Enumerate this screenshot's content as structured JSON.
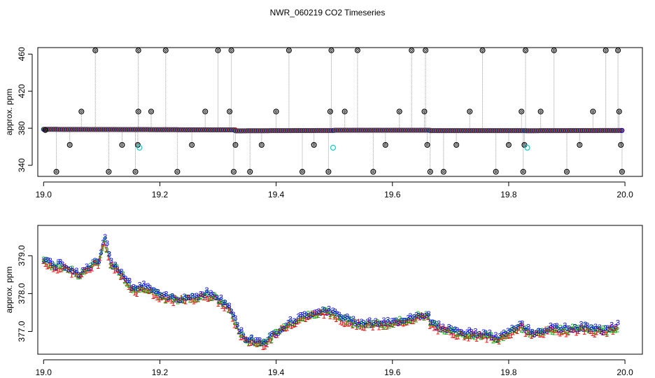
{
  "title": "NWR_060219  CO2 Timeseries",
  "colors": {
    "axis": "#000000",
    "series1": "#ff0000",
    "series2": "#00b000",
    "series3": "#0000ff",
    "flagged": "#000000",
    "cyan": "#00d0d0",
    "lines": "#999999"
  },
  "chart_data": [
    {
      "type": "scatter",
      "ylabel": "approx. ppm",
      "xlim": [
        18.99,
        20.03
      ],
      "ylim": [
        328,
        467
      ],
      "xticks": [
        19.0,
        19.2,
        19.4,
        19.6,
        19.8,
        20.0
      ],
      "xtick_labels": [
        "19.0",
        "19.2",
        "19.4",
        "19.6",
        "19.8",
        "20.0"
      ],
      "yticks": [
        340,
        380,
        420,
        460
      ],
      "ytick_labels": [
        "340",
        "380",
        "420",
        "460"
      ],
      "baseline_segments": [
        {
          "x": [
            19.0,
            19.33
          ],
          "y": [
            378.8,
            378.2
          ]
        },
        {
          "x": [
            19.33,
            19.5
          ],
          "y": [
            377.2,
            377.6
          ]
        },
        {
          "x": [
            19.5,
            19.665
          ],
          "y": [
            377.8,
            377.8
          ]
        },
        {
          "x": [
            19.665,
            19.83
          ],
          "y": [
            377.4,
            377.4
          ]
        },
        {
          "x": [
            19.83,
            19.995
          ],
          "y": [
            377.3,
            377.6
          ]
        }
      ],
      "flagged_points": [
        {
          "x": 19.003,
          "y": 378
        },
        {
          "x": 19.022,
          "y": 333
        },
        {
          "x": 19.045,
          "y": 362
        },
        {
          "x": 19.065,
          "y": 398
        },
        {
          "x": 19.089,
          "y": 464
        },
        {
          "x": 19.112,
          "y": 333
        },
        {
          "x": 19.135,
          "y": 362
        },
        {
          "x": 19.158,
          "y": 333
        },
        {
          "x": 19.162,
          "y": 362
        },
        {
          "x": 19.163,
          "y": 398
        },
        {
          "x": 19.163,
          "y": 464
        },
        {
          "x": 19.185,
          "y": 398
        },
        {
          "x": 19.21,
          "y": 464
        },
        {
          "x": 19.23,
          "y": 333
        },
        {
          "x": 19.255,
          "y": 362
        },
        {
          "x": 19.278,
          "y": 398
        },
        {
          "x": 19.3,
          "y": 464
        },
        {
          "x": 19.32,
          "y": 398
        },
        {
          "x": 19.323,
          "y": 464
        },
        {
          "x": 19.327,
          "y": 333
        },
        {
          "x": 19.33,
          "y": 362
        },
        {
          "x": 19.355,
          "y": 333
        },
        {
          "x": 19.375,
          "y": 362
        },
        {
          "x": 19.4,
          "y": 398
        },
        {
          "x": 19.422,
          "y": 464
        },
        {
          "x": 19.445,
          "y": 333
        },
        {
          "x": 19.465,
          "y": 362
        },
        {
          "x": 19.49,
          "y": 333
        },
        {
          "x": 19.493,
          "y": 398
        },
        {
          "x": 19.495,
          "y": 464
        },
        {
          "x": 19.518,
          "y": 398
        },
        {
          "x": 19.54,
          "y": 464
        },
        {
          "x": 19.567,
          "y": 333
        },
        {
          "x": 19.588,
          "y": 362
        },
        {
          "x": 19.612,
          "y": 398
        },
        {
          "x": 19.633,
          "y": 464
        },
        {
          "x": 19.655,
          "y": 398
        },
        {
          "x": 19.657,
          "y": 464
        },
        {
          "x": 19.66,
          "y": 362
        },
        {
          "x": 19.665,
          "y": 333
        },
        {
          "x": 19.688,
          "y": 333
        },
        {
          "x": 19.71,
          "y": 362
        },
        {
          "x": 19.733,
          "y": 398
        },
        {
          "x": 19.755,
          "y": 464
        },
        {
          "x": 19.778,
          "y": 333
        },
        {
          "x": 19.8,
          "y": 362
        },
        {
          "x": 19.822,
          "y": 398
        },
        {
          "x": 19.825,
          "y": 333
        },
        {
          "x": 19.827,
          "y": 362
        },
        {
          "x": 19.829,
          "y": 464
        },
        {
          "x": 19.855,
          "y": 398
        },
        {
          "x": 19.878,
          "y": 464
        },
        {
          "x": 19.9,
          "y": 333
        },
        {
          "x": 19.922,
          "y": 362
        },
        {
          "x": 19.945,
          "y": 398
        },
        {
          "x": 19.967,
          "y": 464
        },
        {
          "x": 19.988,
          "y": 464
        },
        {
          "x": 19.99,
          "y": 398
        },
        {
          "x": 19.993,
          "y": 362
        },
        {
          "x": 19.995,
          "y": 333
        }
      ],
      "cyan_points": [
        {
          "x": 19.165,
          "y": 359
        },
        {
          "x": 19.498,
          "y": 359
        },
        {
          "x": 19.832,
          "y": 359
        }
      ]
    },
    {
      "type": "scatter",
      "ylabel": "approx. ppm",
      "xlim": [
        18.99,
        20.03
      ],
      "ylim": [
        376.4,
        379.8
      ],
      "xticks": [
        19.0,
        19.2,
        19.4,
        19.6,
        19.8,
        20.0
      ],
      "xtick_labels": [
        "19.0",
        "19.2",
        "19.4",
        "19.6",
        "19.8",
        "20.0"
      ],
      "yticks": [
        377.0,
        378.0,
        379.0
      ],
      "ytick_labels": [
        "377.0",
        "378.0",
        "379.0"
      ],
      "marker_labels": [
        "1",
        "2",
        "3"
      ],
      "trend_knots": {
        "x": [
          19.0,
          19.02,
          19.03,
          19.05,
          19.06,
          19.08,
          19.095,
          19.105,
          19.115,
          19.13,
          19.15,
          19.16,
          19.175,
          19.2,
          19.23,
          19.26,
          19.28,
          19.3,
          19.32,
          19.335,
          19.345,
          19.36,
          19.38,
          19.4,
          19.42,
          19.45,
          19.48,
          19.5,
          19.52,
          19.55,
          19.6,
          19.63,
          19.66,
          19.665,
          19.68,
          19.72,
          19.76,
          19.78,
          19.8,
          19.82,
          19.84,
          19.87,
          19.9,
          19.93,
          19.96,
          19.99
        ],
        "y": [
          378.9,
          378.7,
          378.75,
          378.6,
          378.5,
          378.7,
          378.85,
          379.45,
          378.8,
          378.6,
          378.2,
          378.1,
          378.2,
          377.9,
          377.85,
          377.9,
          378.0,
          377.85,
          377.6,
          377.05,
          376.8,
          376.75,
          376.7,
          376.95,
          377.2,
          377.4,
          377.55,
          377.45,
          377.3,
          377.2,
          377.2,
          377.35,
          377.45,
          377.2,
          377.1,
          376.95,
          376.9,
          376.8,
          376.95,
          377.15,
          376.95,
          377.05,
          377.05,
          377.1,
          377.0,
          377.15
        ]
      }
    }
  ]
}
